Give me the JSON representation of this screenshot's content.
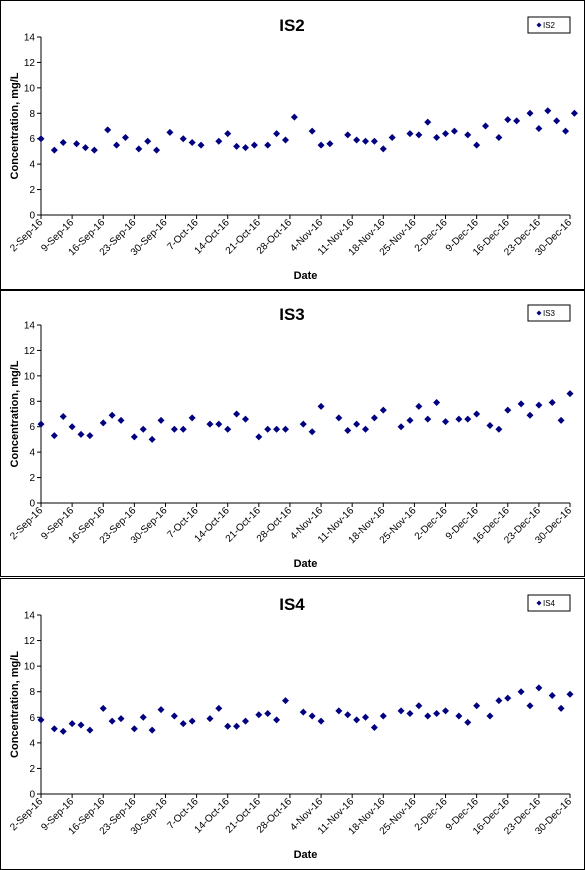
{
  "chart_data": [
    {
      "type": "scatter",
      "title": "IS2",
      "xlabel": "Date",
      "ylabel": "Concentration, mg/L",
      "ylim": [
        0,
        14
      ],
      "yticks": [
        "0",
        "2",
        "4",
        "6",
        "8",
        "10",
        "12",
        "14"
      ],
      "xlim": [
        "2-Sep-16",
        "30-Dec-16"
      ],
      "xticks": [
        "2-Sep-16",
        "9-Sep-16",
        "16-Sep-16",
        "23-Sep-16",
        "30-Sep-16",
        "7-Oct-16",
        "14-Oct-16",
        "21-Oct-16",
        "28-Oct-16",
        "4-Nov-16",
        "11-Nov-16",
        "18-Nov-16",
        "25-Nov-16",
        "2-Dec-16",
        "9-Dec-16",
        "16-Dec-16",
        "23-Dec-16",
        "30-Dec-16"
      ],
      "legend_position": "top-right",
      "grid": false,
      "color": "#000080",
      "series": [
        {
          "name": "IS2",
          "points": [
            [
              "2-Sep-16",
              6.0
            ],
            [
              "5-Sep-16",
              5.1
            ],
            [
              "7-Sep-16",
              5.7
            ],
            [
              "10-Sep-16",
              5.6
            ],
            [
              "12-Sep-16",
              5.3
            ],
            [
              "14-Sep-16",
              5.1
            ],
            [
              "17-Sep-16",
              6.7
            ],
            [
              "19-Sep-16",
              5.5
            ],
            [
              "21-Sep-16",
              6.1
            ],
            [
              "24-Sep-16",
              5.2
            ],
            [
              "26-Sep-16",
              5.8
            ],
            [
              "28-Sep-16",
              5.1
            ],
            [
              "1-Oct-16",
              6.5
            ],
            [
              "4-Oct-16",
              6.0
            ],
            [
              "6-Oct-16",
              5.7
            ],
            [
              "8-Oct-16",
              5.5
            ],
            [
              "12-Oct-16",
              5.8
            ],
            [
              "14-Oct-16",
              6.4
            ],
            [
              "16-Oct-16",
              5.4
            ],
            [
              "18-Oct-16",
              5.3
            ],
            [
              "20-Oct-16",
              5.5
            ],
            [
              "23-Oct-16",
              5.5
            ],
            [
              "25-Oct-16",
              6.4
            ],
            [
              "27-Oct-16",
              5.9
            ],
            [
              "29-Oct-16",
              7.7
            ],
            [
              "2-Nov-16",
              6.6
            ],
            [
              "4-Nov-16",
              5.5
            ],
            [
              "6-Nov-16",
              5.6
            ],
            [
              "10-Nov-16",
              6.3
            ],
            [
              "12-Nov-16",
              5.9
            ],
            [
              "14-Nov-16",
              5.8
            ],
            [
              "16-Nov-16",
              5.8
            ],
            [
              "18-Nov-16",
              5.2
            ],
            [
              "20-Nov-16",
              6.1
            ],
            [
              "24-Nov-16",
              6.4
            ],
            [
              "26-Nov-16",
              6.3
            ],
            [
              "28-Nov-16",
              7.3
            ],
            [
              "30-Nov-16",
              6.1
            ],
            [
              "2-Dec-16",
              6.4
            ],
            [
              "4-Dec-16",
              6.6
            ],
            [
              "7-Dec-16",
              6.3
            ],
            [
              "9-Dec-16",
              5.5
            ],
            [
              "11-Dec-16",
              7.0
            ],
            [
              "14-Dec-16",
              6.1
            ],
            [
              "16-Dec-16",
              7.5
            ],
            [
              "18-Dec-16",
              7.4
            ],
            [
              "21-Dec-16",
              8.0
            ],
            [
              "23-Dec-16",
              6.8
            ],
            [
              "25-Dec-16",
              8.2
            ],
            [
              "27-Dec-16",
              7.4
            ],
            [
              "29-Dec-16",
              6.6
            ],
            [
              "31-Dec-16",
              8.0
            ]
          ]
        }
      ]
    },
    {
      "type": "scatter",
      "title": "IS3",
      "xlabel": "Date",
      "ylabel": "Concentration, mg/L",
      "ylim": [
        0,
        14
      ],
      "yticks": [
        "0",
        "2",
        "4",
        "6",
        "8",
        "10",
        "12",
        "14"
      ],
      "xlim": [
        "2-Sep-16",
        "30-Dec-16"
      ],
      "xticks": [
        "2-Sep-16",
        "9-Sep-16",
        "16-Sep-16",
        "23-Sep-16",
        "30-Sep-16",
        "7-Oct-16",
        "14-Oct-16",
        "21-Oct-16",
        "28-Oct-16",
        "4-Nov-16",
        "11-Nov-16",
        "18-Nov-16",
        "25-Nov-16",
        "2-Dec-16",
        "9-Dec-16",
        "16-Dec-16",
        "23-Dec-16",
        "30-Dec-16"
      ],
      "legend_position": "top-right",
      "grid": false,
      "color": "#000080",
      "series": [
        {
          "name": "IS3",
          "points": [
            [
              "2-Sep-16",
              6.2
            ],
            [
              "5-Sep-16",
              5.3
            ],
            [
              "7-Sep-16",
              6.8
            ],
            [
              "9-Sep-16",
              6.0
            ],
            [
              "11-Sep-16",
              5.4
            ],
            [
              "13-Sep-16",
              5.3
            ],
            [
              "16-Sep-16",
              6.3
            ],
            [
              "18-Sep-16",
              6.9
            ],
            [
              "20-Sep-16",
              6.5
            ],
            [
              "23-Sep-16",
              5.2
            ],
            [
              "25-Sep-16",
              5.8
            ],
            [
              "27-Sep-16",
              5.0
            ],
            [
              "29-Sep-16",
              6.5
            ],
            [
              "2-Oct-16",
              5.8
            ],
            [
              "4-Oct-16",
              5.8
            ],
            [
              "6-Oct-16",
              6.7
            ],
            [
              "10-Oct-16",
              6.2
            ],
            [
              "12-Oct-16",
              6.2
            ],
            [
              "14-Oct-16",
              5.8
            ],
            [
              "16-Oct-16",
              7.0
            ],
            [
              "18-Oct-16",
              6.6
            ],
            [
              "21-Oct-16",
              5.2
            ],
            [
              "23-Oct-16",
              5.8
            ],
            [
              "25-Oct-16",
              5.8
            ],
            [
              "27-Oct-16",
              5.8
            ],
            [
              "31-Oct-16",
              6.2
            ],
            [
              "2-Nov-16",
              5.6
            ],
            [
              "4-Nov-16",
              7.6
            ],
            [
              "8-Nov-16",
              6.7
            ],
            [
              "10-Nov-16",
              5.7
            ],
            [
              "12-Nov-16",
              6.2
            ],
            [
              "14-Nov-16",
              5.8
            ],
            [
              "16-Nov-16",
              6.7
            ],
            [
              "18-Nov-16",
              7.3
            ],
            [
              "22-Nov-16",
              6.0
            ],
            [
              "24-Nov-16",
              6.5
            ],
            [
              "26-Nov-16",
              7.6
            ],
            [
              "28-Nov-16",
              6.6
            ],
            [
              "30-Nov-16",
              7.9
            ],
            [
              "2-Dec-16",
              6.4
            ],
            [
              "5-Dec-16",
              6.6
            ],
            [
              "7-Dec-16",
              6.6
            ],
            [
              "9-Dec-16",
              7.0
            ],
            [
              "12-Dec-16",
              6.1
            ],
            [
              "14-Dec-16",
              5.8
            ],
            [
              "16-Dec-16",
              7.3
            ],
            [
              "19-Dec-16",
              7.8
            ],
            [
              "21-Dec-16",
              6.9
            ],
            [
              "23-Dec-16",
              7.7
            ],
            [
              "26-Dec-16",
              7.9
            ],
            [
              "28-Dec-16",
              6.5
            ],
            [
              "30-Dec-16",
              8.6
            ]
          ]
        }
      ]
    },
    {
      "type": "scatter",
      "title": "IS4",
      "xlabel": "Date",
      "ylabel": "Concentration, mg/L",
      "ylim": [
        0,
        14
      ],
      "yticks": [
        "0",
        "2",
        "4",
        "6",
        "8",
        "10",
        "12",
        "14"
      ],
      "xlim": [
        "2-Sep-16",
        "30-Dec-16"
      ],
      "xticks": [
        "2-Sep-16",
        "9-Sep-16",
        "16-Sep-16",
        "23-Sep-16",
        "30-Sep-16",
        "7-Oct-16",
        "14-Oct-16",
        "21-Oct-16",
        "28-Oct-16",
        "4-Nov-16",
        "11-Nov-16",
        "18-Nov-16",
        "25-Nov-16",
        "2-Dec-16",
        "9-Dec-16",
        "16-Dec-16",
        "23-Dec-16",
        "30-Dec-16"
      ],
      "legend_position": "top-right",
      "grid": false,
      "color": "#000080",
      "series": [
        {
          "name": "IS4",
          "points": [
            [
              "2-Sep-16",
              5.8
            ],
            [
              "5-Sep-16",
              5.1
            ],
            [
              "7-Sep-16",
              4.9
            ],
            [
              "9-Sep-16",
              5.5
            ],
            [
              "11-Sep-16",
              5.4
            ],
            [
              "13-Sep-16",
              5.0
            ],
            [
              "16-Sep-16",
              6.7
            ],
            [
              "18-Sep-16",
              5.7
            ],
            [
              "20-Sep-16",
              5.9
            ],
            [
              "23-Sep-16",
              5.1
            ],
            [
              "25-Sep-16",
              6.0
            ],
            [
              "27-Sep-16",
              5.0
            ],
            [
              "29-Sep-16",
              6.6
            ],
            [
              "2-Oct-16",
              6.1
            ],
            [
              "4-Oct-16",
              5.5
            ],
            [
              "6-Oct-16",
              5.7
            ],
            [
              "10-Oct-16",
              5.9
            ],
            [
              "12-Oct-16",
              6.7
            ],
            [
              "14-Oct-16",
              5.3
            ],
            [
              "16-Oct-16",
              5.3
            ],
            [
              "18-Oct-16",
              5.7
            ],
            [
              "21-Oct-16",
              6.2
            ],
            [
              "23-Oct-16",
              6.3
            ],
            [
              "25-Oct-16",
              5.8
            ],
            [
              "27-Oct-16",
              7.3
            ],
            [
              "31-Oct-16",
              6.4
            ],
            [
              "2-Nov-16",
              6.1
            ],
            [
              "4-Nov-16",
              5.7
            ],
            [
              "8-Nov-16",
              6.5
            ],
            [
              "10-Nov-16",
              6.2
            ],
            [
              "12-Nov-16",
              5.8
            ],
            [
              "14-Nov-16",
              6.0
            ],
            [
              "16-Nov-16",
              5.2
            ],
            [
              "18-Nov-16",
              6.1
            ],
            [
              "22-Nov-16",
              6.5
            ],
            [
              "24-Nov-16",
              6.3
            ],
            [
              "26-Nov-16",
              6.9
            ],
            [
              "28-Nov-16",
              6.1
            ],
            [
              "30-Nov-16",
              6.3
            ],
            [
              "2-Dec-16",
              6.5
            ],
            [
              "5-Dec-16",
              6.1
            ],
            [
              "7-Dec-16",
              5.6
            ],
            [
              "9-Dec-16",
              6.9
            ],
            [
              "12-Dec-16",
              6.1
            ],
            [
              "14-Dec-16",
              7.3
            ],
            [
              "16-Dec-16",
              7.5
            ],
            [
              "19-Dec-16",
              8.0
            ],
            [
              "21-Dec-16",
              6.9
            ],
            [
              "23-Dec-16",
              8.3
            ],
            [
              "26-Dec-16",
              7.7
            ],
            [
              "28-Dec-16",
              6.7
            ],
            [
              "30-Dec-16",
              7.8
            ]
          ]
        }
      ]
    }
  ]
}
